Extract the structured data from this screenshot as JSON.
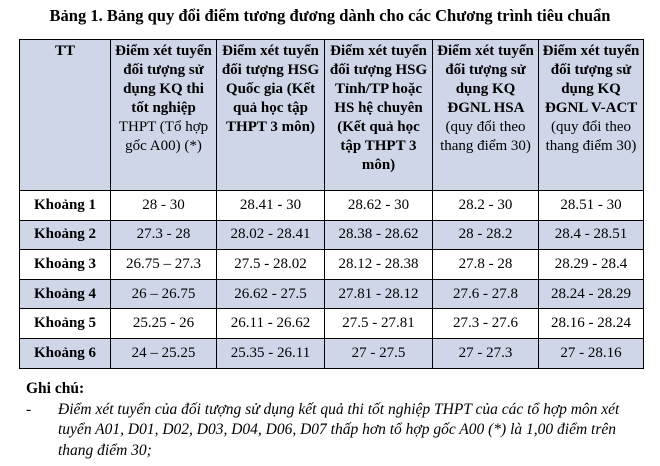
{
  "title": "Bảng 1. Bảng quy đổi điểm tương đương dành cho các Chương trình tiêu chuẩn",
  "table": {
    "headers": [
      {
        "bold": "TT",
        "normal": ""
      },
      {
        "bold": "Điểm xét tuyển đối tượng sử dụng KQ thi tốt nghiệp",
        "normal": "THPT (Tổ hợp gốc A00) (*)"
      },
      {
        "bold": "Điểm xét tuyển đối tượng HSG Quốc gia (Kết quả học tập THPT 3 môn)",
        "normal": ""
      },
      {
        "bold": "Điểm xét tuyển đối tượng HSG Tỉnh/TP hoặc HS hệ chuyên (Kết quả học tập THPT 3 môn)",
        "normal": ""
      },
      {
        "bold": "Điểm xét tuyển đối tượng sử dụng KQ ĐGNL HSA",
        "normal": "(quy đổi theo thang điểm 30)"
      },
      {
        "bold": "Điểm xét tuyển đối tượng sử dụng KQ ĐGNL V-ACT",
        "normal": "(quy đổi theo thang điểm 30)"
      }
    ],
    "rows": [
      [
        "Khoảng 1",
        "28 - 30",
        "28.41 - 30",
        "28.62 - 30",
        "28.2 - 30",
        "28.51 - 30"
      ],
      [
        "Khoảng 2",
        "27.3 - 28",
        "28.02 - 28.41",
        "28.38 - 28.62",
        "28 - 28.2",
        "28.4 - 28.51"
      ],
      [
        "Khoảng 3",
        "26.75 – 27.3",
        "27.5 - 28.02",
        "28.12 - 28.38",
        "27.8 - 28",
        "28.29 - 28.4"
      ],
      [
        "Khoảng 4",
        "26 – 26.75",
        "26.62 - 27.5",
        "27.81 - 28.12",
        "27.6 - 27.8",
        "28.24 - 28.29"
      ],
      [
        "Khoảng 5",
        "25.25 - 26",
        "26.11 - 26.62",
        "27.5 - 27.81",
        "27.3 - 27.6",
        "28.16 - 28.24"
      ],
      [
        "Khoảng 6",
        "24 – 25.25",
        "25.35 - 26.11",
        "27 - 27.5",
        "27 - 27.3",
        "27 - 28.16"
      ]
    ]
  },
  "notes": {
    "heading": "Ghi chú:",
    "items": [
      {
        "dash": "-",
        "text": "Điểm xét tuyển của đối tượng sử dụng kết quả thi tốt nghiệp THPT của các tổ hợp môn xét tuyển A01, D01, D02, D03, D04, D06, D07 thấp hơn tổ hợp gốc A00 (*) là 1,00 điểm trên thang điểm 30;"
      }
    ]
  },
  "colors": {
    "header_bg": "#cfd6e8",
    "alt_row_bg": "#cfd6e8",
    "border": "#000000"
  }
}
